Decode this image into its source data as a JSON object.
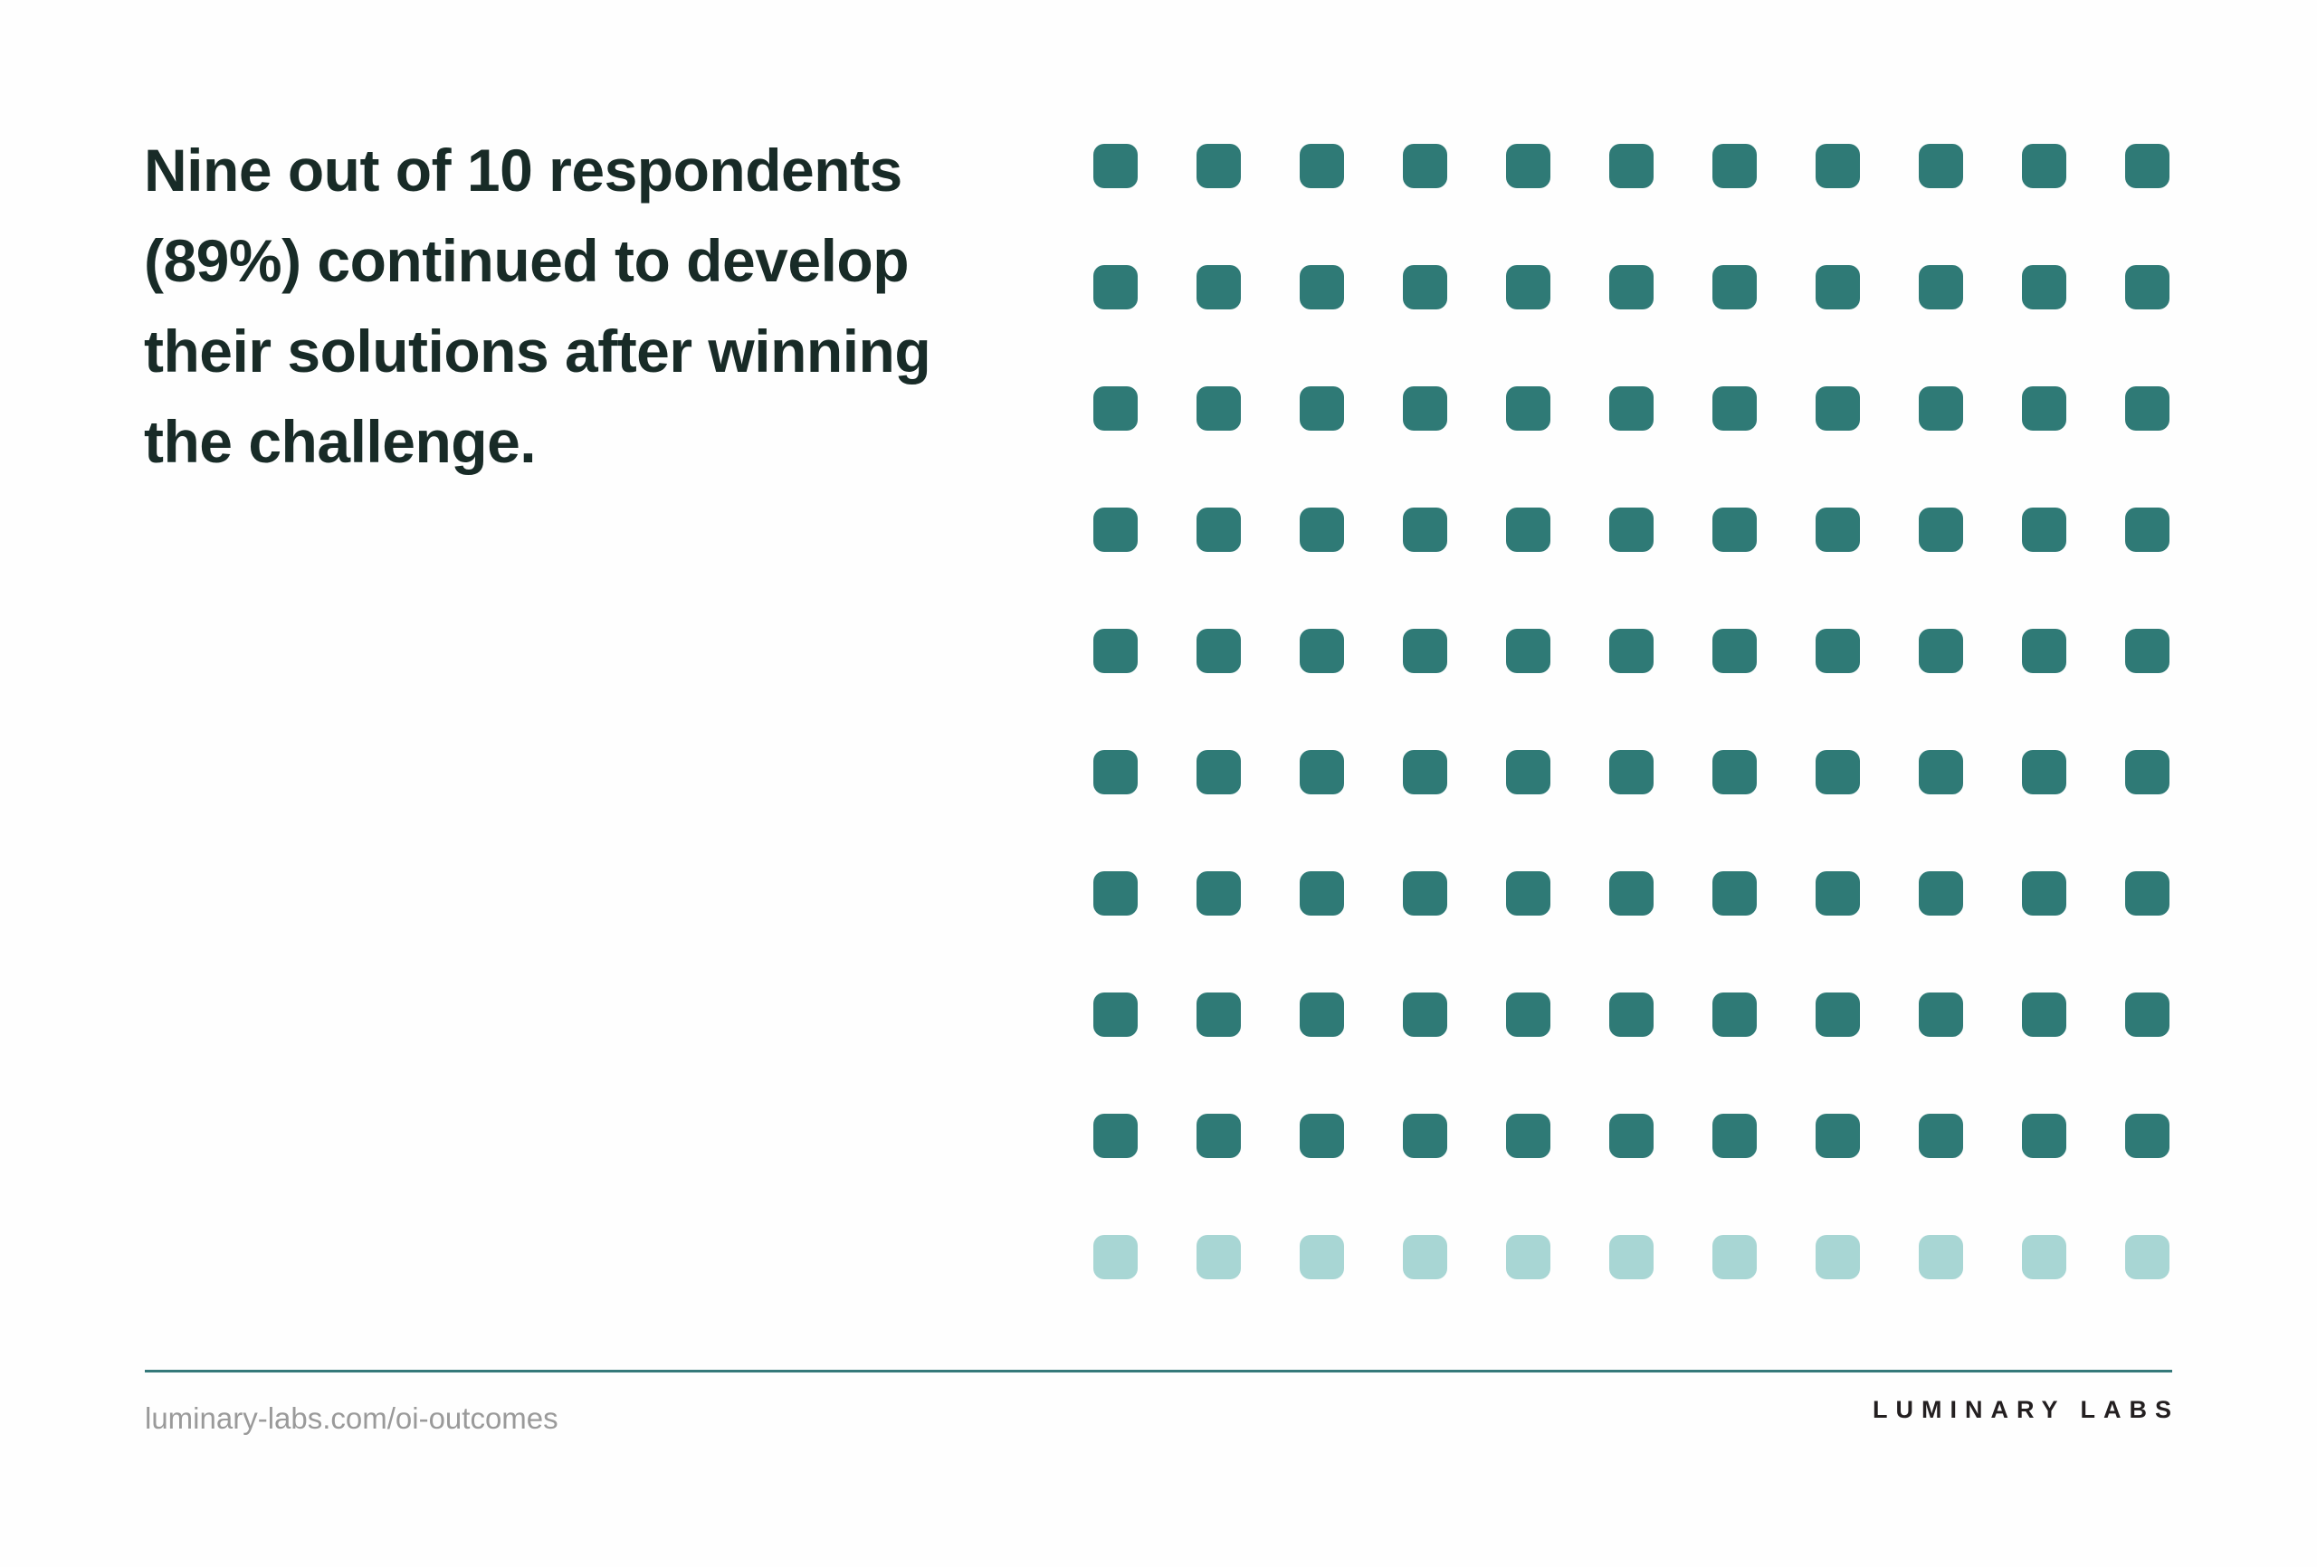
{
  "page": {
    "background_color": "#FEFEFE"
  },
  "headline": {
    "text": "Nine out of 10 respondents (89%) continued to develop their solutions after winning the challenge.",
    "lines": [
      "Nine out of 10 respondents",
      "(89%) continued to develop",
      "their solutions after winning",
      "the challenge."
    ],
    "color": "#182B27"
  },
  "chart_data": {
    "type": "waffle",
    "title": "Nine out of 10 respondents (89%) continued to develop their solutions after winning the challenge.",
    "rows": 10,
    "columns": 11,
    "filled_rows": 9,
    "unfilled_rows": 1,
    "total_cells": 110,
    "filled_cells": 99,
    "unfilled_cells": 11,
    "value_percent": 89,
    "filled_color": "#2F7A76",
    "unfilled_color": "#A8D6D4"
  },
  "footer": {
    "url": "luminary-labs.com/oi-outcomes",
    "url_color": "#9A9A9A",
    "logo": "LUMINARY LABS",
    "logo_color": "#231F20",
    "divider_color": "#35797A"
  }
}
